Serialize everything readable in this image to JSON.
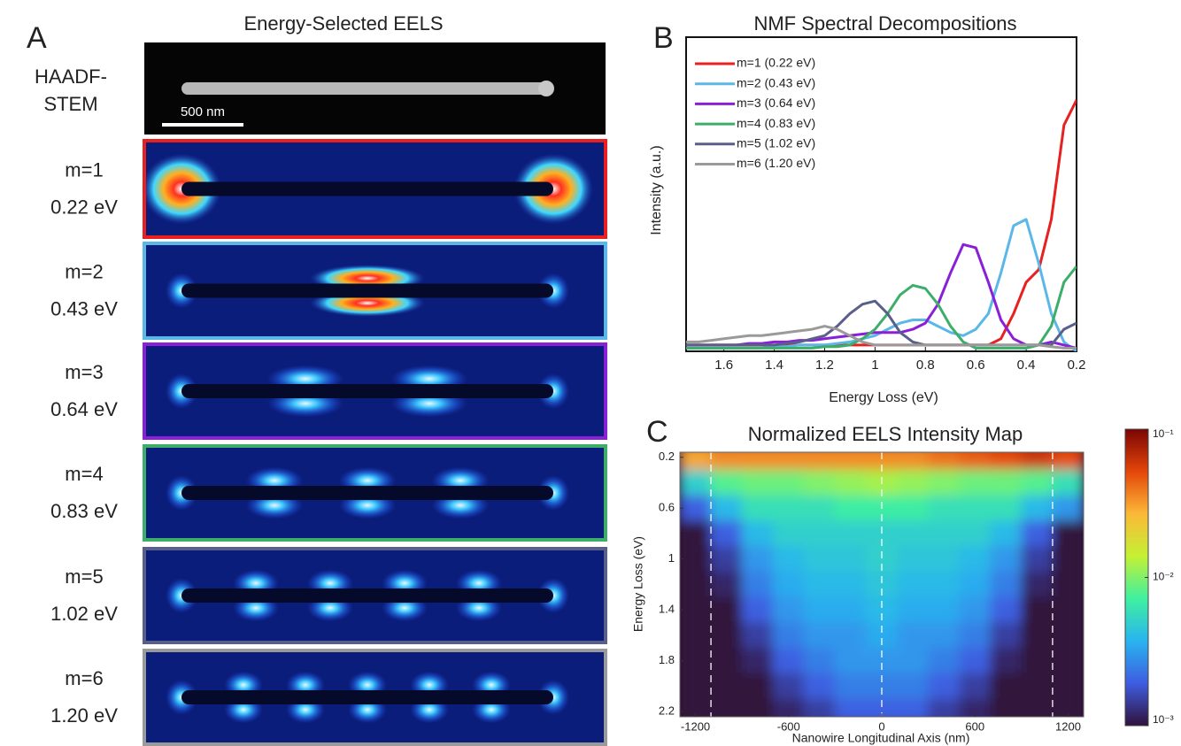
{
  "panel_a": {
    "label": "A",
    "title": "Energy-Selected EELS",
    "reference": {
      "label_lines": [
        "HAADF-",
        "STEM"
      ],
      "scale_bar": "500 nm"
    },
    "modes": [
      {
        "name": "m=1",
        "energy": "0.22 eV",
        "color": "#e8201f"
      },
      {
        "name": "m=2",
        "energy": "0.43 eV",
        "color": "#5ab8e8"
      },
      {
        "name": "m=3",
        "energy": "0.64 eV",
        "color": "#8a1fd8"
      },
      {
        "name": "m=4",
        "energy": "0.83 eV",
        "color": "#3dae6a"
      },
      {
        "name": "m=5",
        "energy": "1.02 eV",
        "color": "#5a5f8a"
      },
      {
        "name": "m=6",
        "energy": "1.20 eV",
        "color": "#9a9a9a"
      }
    ]
  },
  "chart_data": [
    {
      "label": "B",
      "type": "line",
      "title": "NMF Spectral Decompositions",
      "xlabel": "Energy Loss (eV)",
      "ylabel": "Intensity (a.u.)",
      "xlim": [
        1.75,
        0.2
      ],
      "xticks": [
        1.6,
        1.4,
        1.2,
        1,
        0.8,
        0.6,
        0.4,
        0.2
      ],
      "ylim": [
        0,
        1
      ],
      "x": [
        1.75,
        1.7,
        1.65,
        1.6,
        1.55,
        1.5,
        1.45,
        1.4,
        1.35,
        1.3,
        1.25,
        1.2,
        1.15,
        1.1,
        1.05,
        1.0,
        0.95,
        0.9,
        0.85,
        0.8,
        0.75,
        0.7,
        0.65,
        0.6,
        0.55,
        0.5,
        0.45,
        0.4,
        0.35,
        0.3,
        0.25,
        0.2
      ],
      "series": [
        {
          "name": "m=1 (0.22 eV)",
          "color": "#e8201f",
          "values": [
            0.02,
            0.02,
            0.02,
            0.02,
            0.02,
            0.02,
            0.02,
            0.02,
            0.02,
            0.02,
            0.02,
            0.02,
            0.02,
            0.02,
            0.02,
            0.02,
            0.02,
            0.02,
            0.02,
            0.02,
            0.02,
            0.02,
            0.02,
            0.02,
            0.02,
            0.04,
            0.12,
            0.22,
            0.26,
            0.42,
            0.72,
            0.8
          ]
        },
        {
          "name": "m=2 (0.43 eV)",
          "color": "#5ab8e8",
          "values": [
            0.01,
            0.01,
            0.01,
            0.01,
            0.01,
            0.01,
            0.01,
            0.015,
            0.015,
            0.02,
            0.02,
            0.02,
            0.025,
            0.03,
            0.04,
            0.05,
            0.07,
            0.09,
            0.1,
            0.1,
            0.08,
            0.06,
            0.05,
            0.07,
            0.12,
            0.25,
            0.4,
            0.42,
            0.28,
            0.12,
            0.03,
            0.0
          ]
        },
        {
          "name": "m=3 (0.64 eV)",
          "color": "#8a1fd8",
          "values": [
            0.02,
            0.02,
            0.02,
            0.02,
            0.02,
            0.025,
            0.025,
            0.03,
            0.03,
            0.035,
            0.035,
            0.04,
            0.045,
            0.05,
            0.055,
            0.06,
            0.06,
            0.06,
            0.07,
            0.09,
            0.15,
            0.25,
            0.34,
            0.33,
            0.22,
            0.1,
            0.04,
            0.02,
            0.02,
            0.03,
            0.02,
            0.01
          ]
        },
        {
          "name": "m=4 (0.83 eV)",
          "color": "#3dae6a",
          "values": [
            0.01,
            0.01,
            0.01,
            0.01,
            0.01,
            0.01,
            0.01,
            0.01,
            0.01,
            0.01,
            0.01,
            0.015,
            0.015,
            0.02,
            0.04,
            0.07,
            0.12,
            0.18,
            0.21,
            0.2,
            0.15,
            0.08,
            0.03,
            0.01,
            0.01,
            0.01,
            0.01,
            0.01,
            0.02,
            0.08,
            0.22,
            0.27
          ]
        },
        {
          "name": "m=5 (1.02 eV)",
          "color": "#5a5f8a",
          "values": [
            0.02,
            0.02,
            0.02,
            0.02,
            0.02,
            0.02,
            0.02,
            0.02,
            0.025,
            0.03,
            0.04,
            0.05,
            0.08,
            0.12,
            0.15,
            0.16,
            0.12,
            0.06,
            0.03,
            0.02,
            0.02,
            0.02,
            0.02,
            0.02,
            0.02,
            0.02,
            0.02,
            0.02,
            0.02,
            0.02,
            0.07,
            0.09
          ]
        },
        {
          "name": "m=6 (1.20 eV)",
          "color": "#9a9a9a",
          "values": [
            0.03,
            0.03,
            0.035,
            0.04,
            0.045,
            0.05,
            0.05,
            0.055,
            0.06,
            0.065,
            0.07,
            0.08,
            0.07,
            0.05,
            0.03,
            0.02,
            0.02,
            0.02,
            0.02,
            0.02,
            0.02,
            0.02,
            0.02,
            0.02,
            0.02,
            0.02,
            0.02,
            0.02,
            0.02,
            0.015,
            0.01,
            0.01
          ]
        }
      ]
    },
    {
      "label": "C",
      "type": "heatmap",
      "title": "Normalized EELS Intensity Map",
      "xlabel": "Nanowire Longitudinal Axis (nm)",
      "ylabel": "Energy Loss (eV)",
      "xlim": [
        -1300,
        1300
      ],
      "xticks": [
        -1200,
        -600,
        0,
        600,
        1200
      ],
      "ylim": [
        0.16,
        2.24
      ],
      "yticks": [
        0.2,
        0.6,
        1,
        1.4,
        1.8,
        2.2
      ],
      "guide_lines_x": [
        -1100,
        0,
        1100
      ],
      "x": [
        -1200,
        -1000,
        -800,
        -600,
        -400,
        -200,
        0,
        200,
        400,
        600,
        800,
        1000,
        1200
      ],
      "y": [
        0.2,
        0.4,
        0.6,
        0.8,
        1.0,
        1.2,
        1.4,
        1.6,
        1.8,
        2.0,
        2.2
      ],
      "z": [
        [
          0.03,
          0.035,
          0.035,
          0.035,
          0.035,
          0.035,
          0.035,
          0.035,
          0.04,
          0.045,
          0.05,
          0.06,
          0.05
        ],
        [
          0.005,
          0.008,
          0.009,
          0.009,
          0.01,
          0.011,
          0.012,
          0.011,
          0.01,
          0.009,
          0.009,
          0.008,
          0.006
        ],
        [
          0.002,
          0.004,
          0.006,
          0.006,
          0.006,
          0.007,
          0.007,
          0.007,
          0.006,
          0.006,
          0.006,
          0.004,
          0.003
        ],
        [
          0.001,
          0.002,
          0.004,
          0.005,
          0.005,
          0.005,
          0.005,
          0.005,
          0.005,
          0.005,
          0.004,
          0.002,
          0.001
        ],
        [
          0.001,
          0.0015,
          0.003,
          0.004,
          0.0045,
          0.0045,
          0.005,
          0.0045,
          0.0045,
          0.004,
          0.003,
          0.0015,
          0.001
        ],
        [
          0.001,
          0.0012,
          0.0025,
          0.0035,
          0.004,
          0.004,
          0.0045,
          0.004,
          0.004,
          0.0035,
          0.0025,
          0.0012,
          0.001
        ],
        [
          0.001,
          0.001,
          0.002,
          0.003,
          0.0035,
          0.0035,
          0.004,
          0.0035,
          0.0035,
          0.003,
          0.002,
          0.001,
          0.001
        ],
        [
          0.001,
          0.001,
          0.0015,
          0.0025,
          0.003,
          0.003,
          0.0035,
          0.003,
          0.003,
          0.0025,
          0.0015,
          0.001,
          0.001
        ],
        [
          0.001,
          0.001,
          0.0012,
          0.002,
          0.0025,
          0.003,
          0.003,
          0.003,
          0.0025,
          0.002,
          0.0012,
          0.001,
          0.001
        ],
        [
          0.001,
          0.001,
          0.001,
          0.0015,
          0.002,
          0.0025,
          0.0025,
          0.0025,
          0.002,
          0.0015,
          0.001,
          0.001,
          0.001
        ],
        [
          0.001,
          0.001,
          0.001,
          0.0012,
          0.0015,
          0.002,
          0.002,
          0.002,
          0.0015,
          0.0012,
          0.001,
          0.001,
          0.001
        ]
      ],
      "colorbar": {
        "log": true,
        "lim": [
          0.001,
          0.1
        ],
        "ticks": [
          {
            "value": 0.1,
            "label": "10⁻¹"
          },
          {
            "value": 0.01,
            "label": "10⁻²"
          },
          {
            "value": 0.001,
            "label": "10⁻³"
          }
        ],
        "colormap": [
          "#30123b",
          "#3e5ce0",
          "#29b4f0",
          "#3ff0a0",
          "#c4f134",
          "#fbb938",
          "#e4460a",
          "#7a0403"
        ]
      }
    }
  ]
}
